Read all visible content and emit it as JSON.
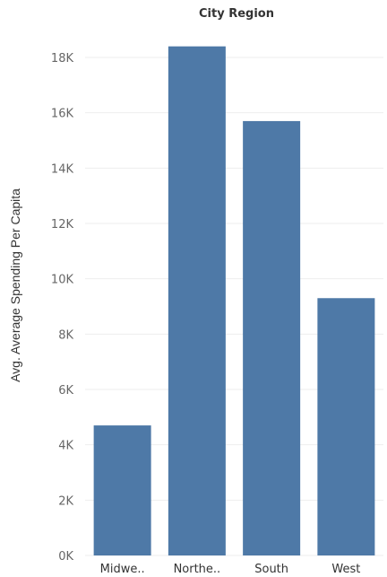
{
  "chart_data": {
    "type": "bar",
    "title": "City Region",
    "xlabel": "",
    "ylabel": "Avg. Average Spending Per Capita",
    "categories": [
      "Midwe..",
      "Northe..",
      "South",
      "West"
    ],
    "values": [
      4700,
      18400,
      15700,
      9300
    ],
    "ylim": [
      0,
      19000
    ],
    "yticks": [
      "0K",
      "2K",
      "4K",
      "6K",
      "8K",
      "10K",
      "12K",
      "14K",
      "16K",
      "18K"
    ],
    "ytick_values": [
      0,
      2000,
      4000,
      6000,
      8000,
      10000,
      12000,
      14000,
      16000,
      18000
    ],
    "grid": true,
    "bar_color": "#4e79a7",
    "grid_color": "#eeeeee"
  }
}
